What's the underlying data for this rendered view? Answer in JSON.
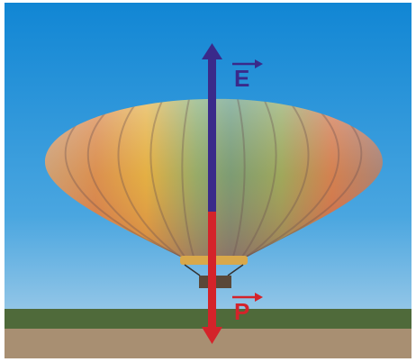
{
  "vectors": [
    {
      "label": "E"
    },
    {
      "label": "P"
    }
  ]
}
